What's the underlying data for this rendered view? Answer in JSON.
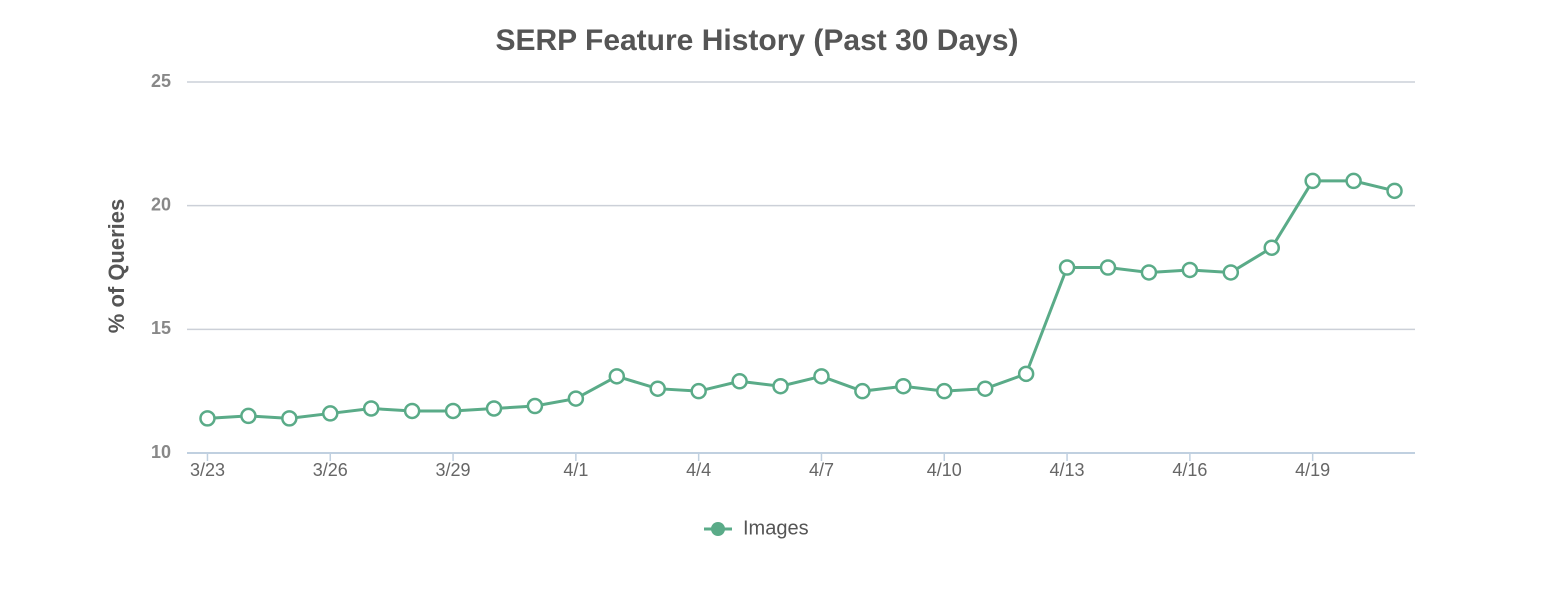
{
  "chart_data": {
    "type": "line",
    "title": "SERP Feature History (Past 30 Days)",
    "y_label": "% of Queries",
    "categories": [
      "3/23",
      null,
      null,
      "3/26",
      null,
      null,
      "3/29",
      null,
      null,
      "4/1",
      null,
      null,
      "4/4",
      null,
      null,
      "4/7",
      null,
      null,
      "4/10",
      null,
      null,
      "4/13",
      null,
      null,
      "4/16",
      null,
      null,
      "4/19",
      null,
      null
    ],
    "series": [
      {
        "name": "Images",
        "color": "#5aab88",
        "values": [
          11.4,
          11.5,
          11.4,
          11.6,
          11.8,
          11.7,
          11.7,
          11.8,
          11.9,
          12.2,
          13.1,
          12.6,
          12.5,
          12.9,
          12.7,
          13.1,
          12.5,
          12.7,
          12.5,
          12.6,
          13.2,
          17.5,
          17.5,
          17.3,
          17.4,
          17.3,
          18.3,
          21.0,
          21.0,
          20.6
        ]
      }
    ],
    "ylim": [
      10,
      25
    ],
    "yticks": [
      10,
      15,
      20,
      25
    ],
    "grid": true,
    "legend": "bottom"
  }
}
